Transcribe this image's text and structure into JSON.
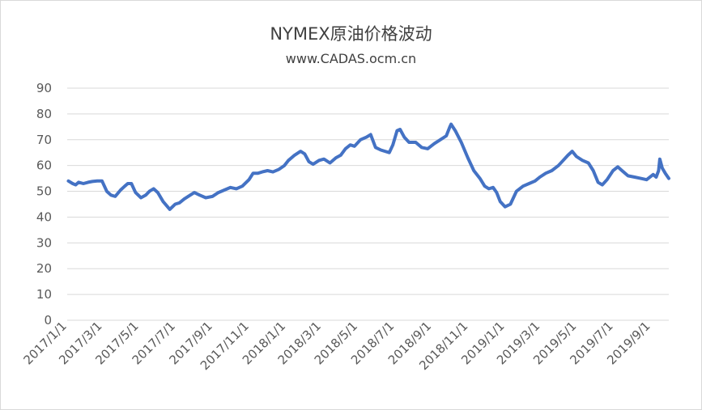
{
  "chart_data": {
    "type": "line",
    "title": "NYMEX原油价格波动",
    "subtitle": "www.CADAS.ocm.cn",
    "ylim": [
      0,
      90
    ],
    "yticks": [
      0,
      10,
      20,
      30,
      40,
      50,
      60,
      70,
      80,
      90
    ],
    "xlim": [
      "2017-01-01",
      "2019-10-01"
    ],
    "xticks": [
      {
        "date": "2017-01-01",
        "label": "2017/1/1"
      },
      {
        "date": "2017-03-01",
        "label": "2017/3/1"
      },
      {
        "date": "2017-05-01",
        "label": "2017/5/1"
      },
      {
        "date": "2017-07-01",
        "label": "2017/7/1"
      },
      {
        "date": "2017-09-01",
        "label": "2017/9/1"
      },
      {
        "date": "2017-11-01",
        "label": "2017/11/1"
      },
      {
        "date": "2018-01-01",
        "label": "2018/1/1"
      },
      {
        "date": "2018-03-01",
        "label": "2018/3/1"
      },
      {
        "date": "2018-05-01",
        "label": "2018/5/1"
      },
      {
        "date": "2018-07-01",
        "label": "2018/7/1"
      },
      {
        "date": "2018-09-01",
        "label": "2018/9/1"
      },
      {
        "date": "2018-11-01",
        "label": "2018/11/1"
      },
      {
        "date": "2019-01-01",
        "label": "2019/1/1"
      },
      {
        "date": "2019-03-01",
        "label": "2019/3/1"
      },
      {
        "date": "2019-05-01",
        "label": "2019/5/1"
      },
      {
        "date": "2019-07-01",
        "label": "2019/7/1"
      },
      {
        "date": "2019-09-01",
        "label": "2019/9/1"
      }
    ],
    "grid": true,
    "legend": "none",
    "line_color": "#4472c4",
    "series": [
      {
        "x": [
          "2017-01-03",
          "2017-01-10",
          "2017-01-15",
          "2017-01-20",
          "2017-01-28",
          "2017-02-05",
          "2017-02-12",
          "2017-02-20",
          "2017-02-28",
          "2017-03-08",
          "2017-03-15",
          "2017-03-22",
          "2017-03-31",
          "2017-04-07",
          "2017-04-12",
          "2017-04-18",
          "2017-04-25",
          "2017-05-04",
          "2017-05-12",
          "2017-05-18",
          "2017-05-25",
          "2017-06-01",
          "2017-06-10",
          "2017-06-21",
          "2017-06-30",
          "2017-07-07",
          "2017-07-15",
          "2017-07-25",
          "2017-08-01",
          "2017-08-10",
          "2017-08-20",
          "2017-08-31",
          "2017-09-10",
          "2017-09-20",
          "2017-09-30",
          "2017-10-10",
          "2017-10-20",
          "2017-10-31",
          "2017-11-07",
          "2017-11-15",
          "2017-11-22",
          "2017-12-01",
          "2017-12-10",
          "2017-12-20",
          "2017-12-29",
          "2018-01-05",
          "2018-01-15",
          "2018-01-25",
          "2018-02-01",
          "2018-02-08",
          "2018-02-15",
          "2018-02-25",
          "2018-03-05",
          "2018-03-15",
          "2018-03-25",
          "2018-04-02",
          "2018-04-10",
          "2018-04-18",
          "2018-04-25",
          "2018-05-05",
          "2018-05-15",
          "2018-05-22",
          "2018-05-30",
          "2018-06-08",
          "2018-06-15",
          "2018-06-22",
          "2018-06-28",
          "2018-07-05",
          "2018-07-10",
          "2018-07-17",
          "2018-07-25",
          "2018-08-05",
          "2018-08-15",
          "2018-08-25",
          "2018-09-05",
          "2018-09-15",
          "2018-09-25",
          "2018-10-01",
          "2018-10-03",
          "2018-10-10",
          "2018-10-20",
          "2018-10-31",
          "2018-11-10",
          "2018-11-20",
          "2018-11-28",
          "2018-12-05",
          "2018-12-12",
          "2018-12-18",
          "2018-12-24",
          "2019-01-01",
          "2019-01-10",
          "2019-01-20",
          "2019-01-31",
          "2019-02-10",
          "2019-02-20",
          "2019-02-28",
          "2019-03-10",
          "2019-03-20",
          "2019-03-31",
          "2019-04-08",
          "2019-04-16",
          "2019-04-23",
          "2019-04-30",
          "2019-05-10",
          "2019-05-20",
          "2019-05-28",
          "2019-06-05",
          "2019-06-12",
          "2019-06-20",
          "2019-06-30",
          "2019-07-08",
          "2019-07-15",
          "2019-07-25",
          "2019-08-05",
          "2019-08-15",
          "2019-08-25",
          "2019-09-05",
          "2019-09-10",
          "2019-09-14",
          "2019-09-16",
          "2019-09-20",
          "2019-09-25",
          "2019-10-01"
        ],
        "y": [
          54,
          53,
          52.5,
          53.5,
          53,
          53.5,
          53.8,
          54,
          54,
          50,
          48.5,
          48,
          50.5,
          52,
          53,
          53,
          49.5,
          47.5,
          48.5,
          50,
          51,
          49.5,
          46,
          43,
          45,
          45.5,
          47,
          48.5,
          49.5,
          48.5,
          47.5,
          48,
          49.5,
          50.5,
          51.5,
          51,
          52,
          54.5,
          57,
          57,
          57.5,
          58,
          57.5,
          58.5,
          60,
          62,
          64,
          65.5,
          64.5,
          61.5,
          60.5,
          62,
          62.5,
          61,
          63,
          64,
          66.5,
          68,
          67.5,
          70,
          71,
          72,
          67,
          66,
          65.5,
          65,
          68,
          73.5,
          74,
          71,
          69,
          69,
          67,
          66.5,
          68.5,
          70,
          71.5,
          75,
          76,
          73.5,
          69,
          63,
          58,
          55,
          52,
          51,
          51.5,
          49.5,
          46,
          44,
          45,
          50,
          52,
          53,
          54,
          55.5,
          57,
          58,
          60,
          62,
          64,
          65.5,
          63.5,
          62,
          61,
          58,
          53.5,
          52.5,
          54.5,
          58,
          59.5,
          58,
          56,
          55.5,
          55,
          54.5,
          56.5,
          55.5,
          58,
          62.5,
          59,
          57,
          55
        ]
      }
    ]
  }
}
